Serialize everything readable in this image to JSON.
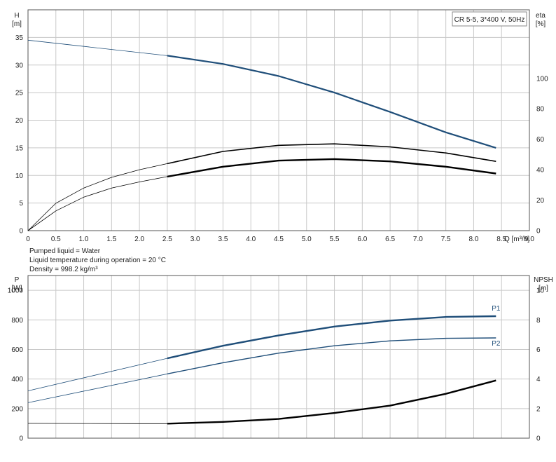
{
  "info": {
    "liquid": "Pumped liquid = Water",
    "temperature": "Liquid temperature during operation = 20 °C",
    "density": "Density = 998.2 kg/m³"
  },
  "colors": {
    "blue": "#1f4e79",
    "black": "#000000",
    "grid": "#c8c8c8",
    "axis": "#555555"
  },
  "chart_data": [
    {
      "type": "line",
      "legend_box": "CR 5-5, 3*400 V, 50Hz",
      "xlabel": "Q [m³/h]",
      "xlim": [
        0,
        9.0
      ],
      "xticks": [
        "0",
        "0.5",
        "1.0",
        "1.5",
        "2.0",
        "2.5",
        "3.0",
        "3.5",
        "4.0",
        "4.5",
        "5.0",
        "5.5",
        "6.0",
        "6.5",
        "7.0",
        "7.5",
        "8.0",
        "8.5",
        "9.0"
      ],
      "y_left": {
        "label_top": "H",
        "unit": "[m]",
        "ylim": [
          0,
          40
        ],
        "ticks": [
          "0",
          "5",
          "10",
          "15",
          "20",
          "25",
          "30",
          "35"
        ]
      },
      "y_right": {
        "label_top": "eta",
        "unit": "[%]",
        "ylim": [
          0,
          145
        ],
        "ticks": [
          "0",
          "20",
          "40",
          "60",
          "80",
          "100"
        ]
      },
      "grid": true,
      "series": [
        {
          "axis": "left",
          "color": "#1f4e79",
          "x": [
            0,
            2.5,
            3.5,
            4.5,
            5.5,
            6.5,
            7.5,
            8.4
          ],
          "y": [
            34.5,
            31.7,
            30.2,
            28.0,
            25.0,
            21.5,
            17.8,
            15.0
          ],
          "thin_until": 2.5
        },
        {
          "axis": "right",
          "color": "#000000",
          "x": [
            0,
            0.5,
            1.0,
            1.5,
            2.0,
            2.5,
            3.5,
            4.5,
            5.5,
            6.5,
            7.5,
            8.4
          ],
          "y": [
            0,
            18,
            28,
            35,
            40,
            44,
            52,
            56,
            57,
            55,
            51,
            45.5
          ],
          "thin_until": 2.5
        },
        {
          "axis": "right",
          "color": "#000000",
          "x": [
            0,
            0.5,
            1.0,
            1.5,
            2.0,
            2.5,
            3.5,
            4.5,
            5.5,
            6.5,
            7.5,
            8.4
          ],
          "y": [
            0,
            13,
            22,
            28,
            32,
            35.5,
            42,
            46,
            47,
            45.5,
            42,
            37.5
          ],
          "thin_until": 2.5
        }
      ]
    },
    {
      "type": "line",
      "ylabel_left": {
        "label_top": "P",
        "unit": "[W]",
        "ylim": [
          0,
          1100
        ],
        "ticks": [
          "0",
          "200",
          "400",
          "600",
          "800",
          "1000"
        ]
      },
      "y_right": {
        "label_top": "NPSH",
        "unit": "[m]",
        "ylim": [
          0,
          11
        ],
        "ticks": [
          "0",
          "2",
          "4",
          "6",
          "8",
          "10"
        ]
      },
      "xlim": [
        0,
        9.0
      ],
      "grid": true,
      "series": [
        {
          "name": "P1",
          "axis": "left",
          "color": "#1f4e79",
          "x": [
            0,
            2.5,
            3.5,
            4.5,
            5.5,
            6.5,
            7.5,
            8.4
          ],
          "y": [
            320,
            540,
            625,
            695,
            755,
            795,
            820,
            825
          ],
          "thin_until": 2.5
        },
        {
          "name": "P2",
          "axis": "left",
          "color": "#1f4e79",
          "x": [
            0,
            2.5,
            3.5,
            4.5,
            5.5,
            6.5,
            7.5,
            8.4
          ],
          "y": [
            240,
            435,
            510,
            575,
            625,
            658,
            675,
            678
          ],
          "thin_until": 2.5
        },
        {
          "axis": "right",
          "color": "#000000",
          "x": [
            0,
            1.0,
            2.0,
            2.5,
            3.5,
            4.5,
            5.5,
            6.5,
            7.5,
            8.4
          ],
          "y": [
            1.0,
            0.99,
            0.98,
            0.98,
            1.1,
            1.3,
            1.7,
            2.2,
            3.0,
            3.9
          ],
          "thin_until": 2.5
        }
      ]
    }
  ]
}
